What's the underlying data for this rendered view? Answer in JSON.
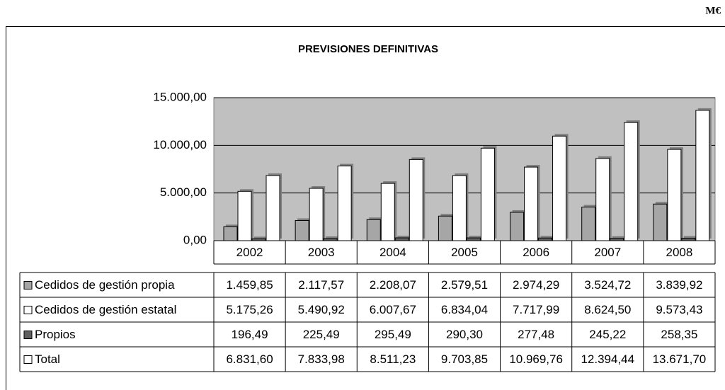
{
  "unit": "M€",
  "chart_data": {
    "type": "bar",
    "title": "PREVISIONES DEFINITIVAS",
    "categories": [
      "2002",
      "2003",
      "2004",
      "2005",
      "2006",
      "2007",
      "2008"
    ],
    "series": [
      {
        "name": "Cedidos de gestión propia",
        "color": "#a6a6a6",
        "values": [
          1459.85,
          2117.57,
          2208.07,
          2579.51,
          2974.29,
          3524.72,
          3839.92
        ],
        "value_labels": [
          "1.459,85",
          "2.117,57",
          "2.208,07",
          "2.579,51",
          "2.974,29",
          "3.524,72",
          "3.839,92"
        ]
      },
      {
        "name": "Cedidos de gestión estatal",
        "color": "#ffffff",
        "values": [
          5175.26,
          5490.92,
          6007.67,
          6834.04,
          7717.99,
          8624.5,
          9573.43
        ],
        "value_labels": [
          "5.175,26",
          "5.490,92",
          "6.007,67",
          "6.834,04",
          "7.717,99",
          "8.624,50",
          "9.573,43"
        ]
      },
      {
        "name": "Propios",
        "color": "#5f5f5f",
        "values": [
          196.49,
          225.49,
          295.49,
          290.3,
          277.48,
          245.22,
          258.35
        ],
        "value_labels": [
          "196,49",
          "225,49",
          "295,49",
          "290,30",
          "277,48",
          "245,22",
          "258,35"
        ]
      },
      {
        "name": "Total",
        "color": "#ffffff",
        "values": [
          6831.6,
          7833.98,
          8511.23,
          9703.85,
          10969.76,
          12394.44,
          13671.7
        ],
        "value_labels": [
          "6.831,60",
          "7.833,98",
          "8.511,23",
          "9.703,85",
          "10.969,76",
          "12.394,44",
          "13.671,70"
        ]
      }
    ],
    "ylim": [
      0,
      15000
    ],
    "yticks": [
      {
        "value": 0,
        "label": "0,00"
      },
      {
        "value": 5000,
        "label": "5.000,00"
      },
      {
        "value": 10000,
        "label": "10.000,00"
      },
      {
        "value": 15000,
        "label": "15.000,00"
      }
    ],
    "grid": true
  }
}
